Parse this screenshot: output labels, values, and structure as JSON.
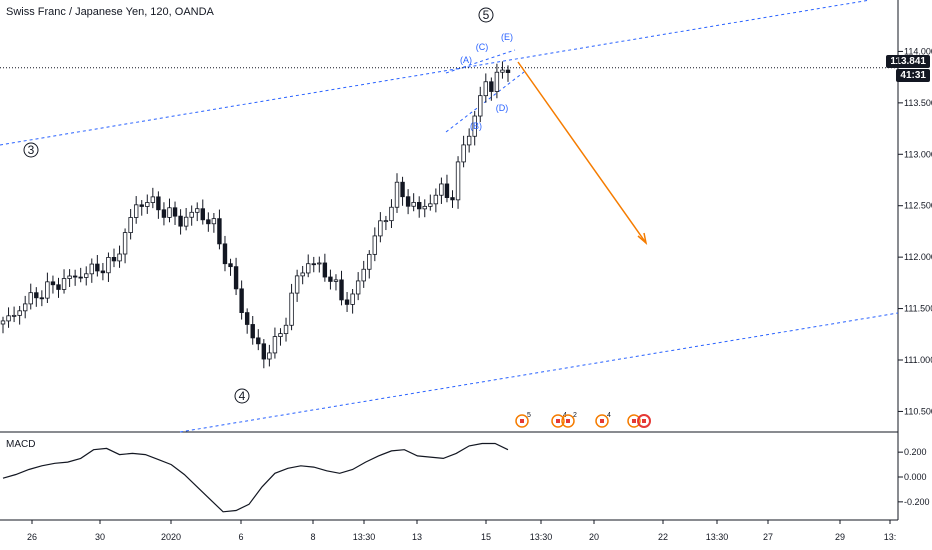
{
  "header": {
    "title": "Swiss Franc / Japanese Yen, 120, OANDA"
  },
  "price_panel": {
    "current_price": "113.841",
    "countdown": "41:31"
  },
  "macd_panel": {
    "label": "MACD"
  },
  "chart_data": [
    {
      "type": "candlestick",
      "title": "Swiss Franc / Japanese Yen, 120, OANDA",
      "x_ticks": [
        "26",
        "30",
        "2020",
        "6",
        "8",
        "13:30",
        "13",
        "15",
        "13:30",
        "20",
        "22",
        "13:30",
        "27",
        "29",
        "13:"
      ],
      "y_ticks": [
        110.5,
        111.0,
        111.5,
        112.0,
        112.5,
        113.0,
        113.5,
        114.0
      ],
      "ylim": [
        110.3,
        114.5
      ],
      "last_price": 113.841,
      "price_path": [
        [
          0,
          111.35
        ],
        [
          5,
          111.6
        ],
        [
          10,
          111.75
        ],
        [
          15,
          111.85
        ],
        [
          20,
          111.95
        ],
        [
          24,
          112.5
        ],
        [
          26,
          112.55
        ],
        [
          29,
          112.45
        ],
        [
          32,
          112.35
        ],
        [
          35,
          112.45
        ],
        [
          38,
          112.3
        ],
        [
          41,
          111.85
        ],
        [
          43,
          111.5
        ],
        [
          45,
          111.2
        ],
        [
          47,
          111.05
        ],
        [
          49,
          111.15
        ],
        [
          51,
          111.4
        ],
        [
          53,
          111.8
        ],
        [
          55,
          111.95
        ],
        [
          57,
          111.9
        ],
        [
          59,
          111.8
        ],
        [
          61,
          111.6
        ],
        [
          63,
          111.6
        ],
        [
          65,
          111.9
        ],
        [
          67,
          112.2
        ],
        [
          69,
          112.4
        ],
        [
          71,
          112.65
        ],
        [
          73,
          112.55
        ],
        [
          75,
          112.45
        ],
        [
          77,
          112.55
        ],
        [
          79,
          112.65
        ],
        [
          81,
          112.6
        ],
        [
          83,
          113.1
        ],
        [
          85,
          113.35
        ],
        [
          86,
          113.55
        ],
        [
          87,
          113.7
        ],
        [
          88,
          113.65
        ],
        [
          89,
          113.8
        ],
        [
          90,
          113.75
        ],
        [
          91,
          113.84
        ]
      ],
      "annotations": {
        "elliott_primary": [
          "3",
          "4",
          "5"
        ],
        "elliott_minor": [
          "(A)",
          "(B)",
          "(C)",
          "(D)",
          "(E)"
        ]
      },
      "event_markers": [
        "5",
        "4",
        "2",
        "4"
      ]
    },
    {
      "type": "line",
      "title": "MACD",
      "y_ticks": [
        0.2,
        0.0,
        -0.2
      ],
      "ylim": [
        -0.33,
        0.33
      ],
      "values": [
        -0.01,
        0.02,
        0.06,
        0.09,
        0.11,
        0.12,
        0.15,
        0.22,
        0.23,
        0.18,
        0.19,
        0.18,
        0.14,
        0.1,
        0.02,
        -0.08,
        -0.18,
        -0.28,
        -0.27,
        -0.22,
        -0.08,
        0.03,
        0.07,
        0.09,
        0.08,
        0.05,
        0.03,
        0.06,
        0.12,
        0.17,
        0.21,
        0.22,
        0.17,
        0.16,
        0.15,
        0.19,
        0.25,
        0.27,
        0.27,
        0.22
      ]
    }
  ]
}
